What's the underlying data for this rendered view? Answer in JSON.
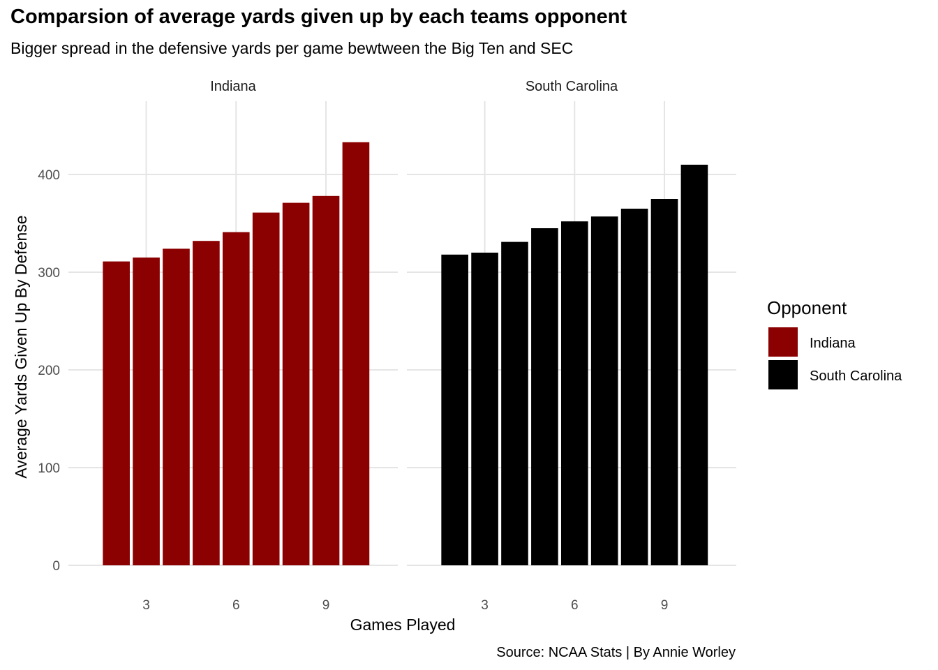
{
  "chart_data": {
    "type": "bar",
    "title": "Comparsion of average yards given up by each teams opponent",
    "subtitle": "Bigger spread in the defensive yards per game bewtween the Big Ten and SEC",
    "xlabel": "Games Played",
    "ylabel": "Average Yards Given Up By Defense",
    "caption": "Source: NCAA Stats | By Annie Worley",
    "x_ticks": [
      3,
      6,
      9
    ],
    "y_ticks": [
      0,
      100,
      200,
      300,
      400
    ],
    "xlim": [
      0.4,
      11.4
    ],
    "ylim": [
      0,
      475
    ],
    "grid": true,
    "legend": {
      "title": "Opponent",
      "position": "right",
      "entries": [
        "Indiana",
        "South Carolina"
      ]
    },
    "panels": [
      {
        "name": "Indiana",
        "color": "#8B0000",
        "x": [
          2,
          3,
          4,
          5,
          6,
          7,
          8,
          9,
          10
        ],
        "values": [
          311,
          315,
          324,
          332,
          341,
          361,
          371,
          378,
          433
        ]
      },
      {
        "name": "South Carolina",
        "color": "#000000",
        "x": [
          2,
          3,
          4,
          5,
          6,
          7,
          8,
          9,
          10
        ],
        "values": [
          318,
          320,
          331,
          345,
          352,
          357,
          365,
          375,
          410
        ]
      }
    ]
  }
}
